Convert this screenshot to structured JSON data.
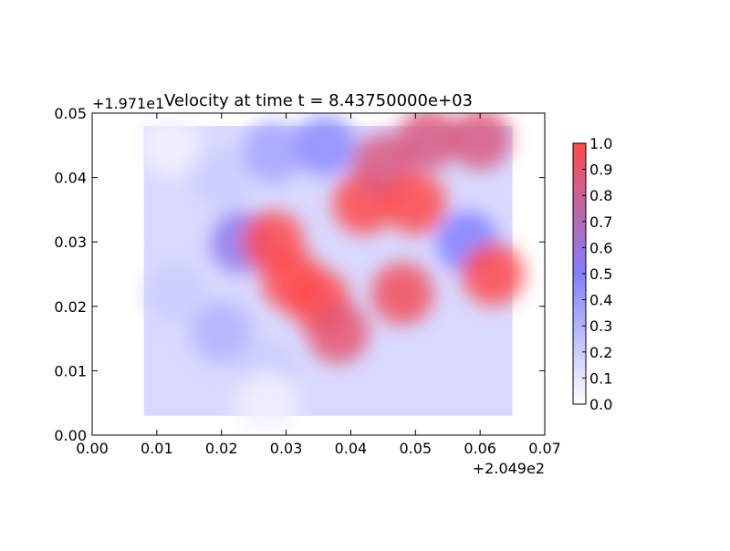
{
  "chart_data": {
    "type": "heatmap",
    "title": "Velocity at time t = 8.43750000e+03",
    "xlabel": "",
    "ylabel": "",
    "x_offset_label": "+2.049e2",
    "y_offset_label": "+1.971e1",
    "xlim": [
      0.0,
      0.07
    ],
    "ylim": [
      0.0,
      0.05
    ],
    "x_ticks": [
      0.0,
      0.01,
      0.02,
      0.03,
      0.04,
      0.05,
      0.06,
      0.07
    ],
    "x_tick_labels": [
      "0.00",
      "0.01",
      "0.02",
      "0.03",
      "0.04",
      "0.05",
      "0.06",
      "0.07"
    ],
    "y_ticks": [
      0.0,
      0.01,
      0.02,
      0.03,
      0.04,
      0.05
    ],
    "y_tick_labels": [
      "0.00",
      "0.01",
      "0.02",
      "0.03",
      "0.04",
      "0.05"
    ],
    "colorbar": {
      "range": [
        0.0,
        1.0
      ],
      "ticks": [
        0.0,
        0.1,
        0.2,
        0.3,
        0.4,
        0.5,
        0.6,
        0.7,
        0.8,
        0.9,
        1.0
      ],
      "tick_labels": [
        "0.0",
        "0.1",
        "0.2",
        "0.3",
        "0.4",
        "0.5",
        "0.6",
        "0.7",
        "0.8",
        "0.9",
        "1.0"
      ],
      "colormap": "bwr",
      "color_low": "#ffffff",
      "color_mid": "#8080ff",
      "color_high": "#ff4a4a"
    },
    "grid": false,
    "domain_bounds": {
      "x": [
        0.008,
        0.065
      ],
      "y": [
        0.003,
        0.048
      ]
    },
    "field_samples": [
      {
        "x": 0.012,
        "y": 0.045,
        "value": 0.05
      },
      {
        "x": 0.015,
        "y": 0.035,
        "value": 0.15
      },
      {
        "x": 0.013,
        "y": 0.022,
        "value": 0.2
      },
      {
        "x": 0.02,
        "y": 0.04,
        "value": 0.2
      },
      {
        "x": 0.02,
        "y": 0.016,
        "value": 0.3
      },
      {
        "x": 0.023,
        "y": 0.03,
        "value": 0.55
      },
      {
        "x": 0.028,
        "y": 0.044,
        "value": 0.35
      },
      {
        "x": 0.028,
        "y": 0.03,
        "value": 1.0
      },
      {
        "x": 0.031,
        "y": 0.024,
        "value": 1.0
      },
      {
        "x": 0.035,
        "y": 0.021,
        "value": 1.0
      },
      {
        "x": 0.036,
        "y": 0.045,
        "value": 0.45
      },
      {
        "x": 0.038,
        "y": 0.016,
        "value": 0.9
      },
      {
        "x": 0.042,
        "y": 0.036,
        "value": 1.0
      },
      {
        "x": 0.045,
        "y": 0.042,
        "value": 0.85
      },
      {
        "x": 0.05,
        "y": 0.036,
        "value": 1.0
      },
      {
        "x": 0.052,
        "y": 0.046,
        "value": 0.85
      },
      {
        "x": 0.06,
        "y": 0.046,
        "value": 0.85
      },
      {
        "x": 0.058,
        "y": 0.03,
        "value": 0.5
      },
      {
        "x": 0.062,
        "y": 0.025,
        "value": 1.0
      },
      {
        "x": 0.048,
        "y": 0.022,
        "value": 0.95
      },
      {
        "x": 0.027,
        "y": 0.01,
        "value": 0.2
      },
      {
        "x": 0.027,
        "y": 0.005,
        "value": 0.05
      }
    ]
  }
}
